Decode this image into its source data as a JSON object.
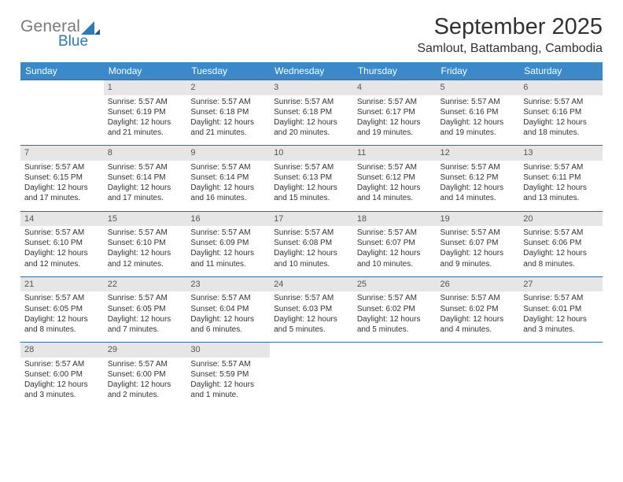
{
  "logo": {
    "text1": "General",
    "text2": "Blue",
    "brand_blue": "#2f79b9",
    "brand_gray": "#7a7a7a"
  },
  "header": {
    "title": "September 2025",
    "location": "Samlout, Battambang, Cambodia"
  },
  "colors": {
    "header_bg": "#3b89c9",
    "header_text": "#ffffff",
    "daynum_bg": "#e6e6e6",
    "rule": "#2f6ea5",
    "text": "#333333",
    "background": "#ffffff"
  },
  "weekdays": [
    "Sunday",
    "Monday",
    "Tuesday",
    "Wednesday",
    "Thursday",
    "Friday",
    "Saturday"
  ],
  "weeks": [
    {
      "nums": [
        "",
        "1",
        "2",
        "3",
        "4",
        "5",
        "6"
      ],
      "cells": [
        null,
        {
          "sunrise": "5:57 AM",
          "sunset": "6:19 PM",
          "daylight": "12 hours and 21 minutes."
        },
        {
          "sunrise": "5:57 AM",
          "sunset": "6:18 PM",
          "daylight": "12 hours and 21 minutes."
        },
        {
          "sunrise": "5:57 AM",
          "sunset": "6:18 PM",
          "daylight": "12 hours and 20 minutes."
        },
        {
          "sunrise": "5:57 AM",
          "sunset": "6:17 PM",
          "daylight": "12 hours and 19 minutes."
        },
        {
          "sunrise": "5:57 AM",
          "sunset": "6:16 PM",
          "daylight": "12 hours and 19 minutes."
        },
        {
          "sunrise": "5:57 AM",
          "sunset": "6:16 PM",
          "daylight": "12 hours and 18 minutes."
        }
      ]
    },
    {
      "nums": [
        "7",
        "8",
        "9",
        "10",
        "11",
        "12",
        "13"
      ],
      "cells": [
        {
          "sunrise": "5:57 AM",
          "sunset": "6:15 PM",
          "daylight": "12 hours and 17 minutes."
        },
        {
          "sunrise": "5:57 AM",
          "sunset": "6:14 PM",
          "daylight": "12 hours and 17 minutes."
        },
        {
          "sunrise": "5:57 AM",
          "sunset": "6:14 PM",
          "daylight": "12 hours and 16 minutes."
        },
        {
          "sunrise": "5:57 AM",
          "sunset": "6:13 PM",
          "daylight": "12 hours and 15 minutes."
        },
        {
          "sunrise": "5:57 AM",
          "sunset": "6:12 PM",
          "daylight": "12 hours and 14 minutes."
        },
        {
          "sunrise": "5:57 AM",
          "sunset": "6:12 PM",
          "daylight": "12 hours and 14 minutes."
        },
        {
          "sunrise": "5:57 AM",
          "sunset": "6:11 PM",
          "daylight": "12 hours and 13 minutes."
        }
      ]
    },
    {
      "nums": [
        "14",
        "15",
        "16",
        "17",
        "18",
        "19",
        "20"
      ],
      "cells": [
        {
          "sunrise": "5:57 AM",
          "sunset": "6:10 PM",
          "daylight": "12 hours and 12 minutes."
        },
        {
          "sunrise": "5:57 AM",
          "sunset": "6:10 PM",
          "daylight": "12 hours and 12 minutes."
        },
        {
          "sunrise": "5:57 AM",
          "sunset": "6:09 PM",
          "daylight": "12 hours and 11 minutes."
        },
        {
          "sunrise": "5:57 AM",
          "sunset": "6:08 PM",
          "daylight": "12 hours and 10 minutes."
        },
        {
          "sunrise": "5:57 AM",
          "sunset": "6:07 PM",
          "daylight": "12 hours and 10 minutes."
        },
        {
          "sunrise": "5:57 AM",
          "sunset": "6:07 PM",
          "daylight": "12 hours and 9 minutes."
        },
        {
          "sunrise": "5:57 AM",
          "sunset": "6:06 PM",
          "daylight": "12 hours and 8 minutes."
        }
      ]
    },
    {
      "nums": [
        "21",
        "22",
        "23",
        "24",
        "25",
        "26",
        "27"
      ],
      "cells": [
        {
          "sunrise": "5:57 AM",
          "sunset": "6:05 PM",
          "daylight": "12 hours and 8 minutes."
        },
        {
          "sunrise": "5:57 AM",
          "sunset": "6:05 PM",
          "daylight": "12 hours and 7 minutes."
        },
        {
          "sunrise": "5:57 AM",
          "sunset": "6:04 PM",
          "daylight": "12 hours and 6 minutes."
        },
        {
          "sunrise": "5:57 AM",
          "sunset": "6:03 PM",
          "daylight": "12 hours and 5 minutes."
        },
        {
          "sunrise": "5:57 AM",
          "sunset": "6:02 PM",
          "daylight": "12 hours and 5 minutes."
        },
        {
          "sunrise": "5:57 AM",
          "sunset": "6:02 PM",
          "daylight": "12 hours and 4 minutes."
        },
        {
          "sunrise": "5:57 AM",
          "sunset": "6:01 PM",
          "daylight": "12 hours and 3 minutes."
        }
      ]
    },
    {
      "nums": [
        "28",
        "29",
        "30",
        "",
        "",
        "",
        ""
      ],
      "cells": [
        {
          "sunrise": "5:57 AM",
          "sunset": "6:00 PM",
          "daylight": "12 hours and 3 minutes."
        },
        {
          "sunrise": "5:57 AM",
          "sunset": "6:00 PM",
          "daylight": "12 hours and 2 minutes."
        },
        {
          "sunrise": "5:57 AM",
          "sunset": "5:59 PM",
          "daylight": "12 hours and 1 minute."
        },
        null,
        null,
        null,
        null
      ]
    }
  ],
  "labels": {
    "sunrise": "Sunrise:",
    "sunset": "Sunset:",
    "daylight": "Daylight:"
  }
}
